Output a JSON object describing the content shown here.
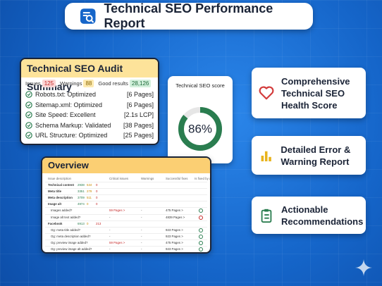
{
  "header": {
    "title": "Technical SEO Performance Report"
  },
  "audit_summary": {
    "title": "Technical SEO Audit Summary",
    "stats": [
      {
        "label": "Issues",
        "value": "125"
      },
      {
        "label": "Warnings",
        "value": "88"
      },
      {
        "label": "Good results",
        "value": "28,126"
      }
    ],
    "checks": [
      {
        "label": "Robots.txt: Optimized",
        "detail": "[6 Pages]"
      },
      {
        "label": "Sitemap.xml: Optimized",
        "detail": "[6 Pages]"
      },
      {
        "label": "Site Speed: Excellent",
        "detail": "[2.1s LCP]"
      },
      {
        "label": "Schema Markup: Validated",
        "detail": "[38 Pages]"
      },
      {
        "label": "URL Structure: Optimized",
        "detail": "[25 Pages]"
      }
    ]
  },
  "score": {
    "title": "Technical SEO score",
    "value": 86,
    "label": "86%"
  },
  "overview": {
    "title": "Overview",
    "columns": [
      "Issue description",
      "Critical issues",
      "Warnings",
      "Successful fixes",
      "Is fixed by audit"
    ],
    "rows": [
      {
        "name": "Technical content",
        "counts": [
          "2938",
          "534",
          "0"
        ]
      },
      {
        "name": "Meta title",
        "counts": [
          "3351",
          "279",
          "0"
        ]
      },
      {
        "name": "Meta description",
        "counts": [
          "3709",
          "511",
          "0"
        ]
      },
      {
        "name": "Image alt",
        "counts": [
          "4974",
          "0",
          "0"
        ]
      },
      {
        "name": "Images added?",
        "critical": "59 Pages >",
        "warnings": "-",
        "successful": "475 Pages >",
        "status": "pass"
      },
      {
        "name": "Image alt text added?",
        "critical": "-",
        "warnings": "-",
        "successful": "4839 Pages >",
        "status": "fail"
      },
      {
        "name": "Facebook",
        "counts": [
          "6913",
          "0",
          "213"
        ]
      },
      {
        "name": "Og: meta title added?",
        "critical": "-",
        "warnings": "-",
        "successful": "923 Pages >",
        "status": "pass"
      },
      {
        "name": "Og: meta description added?",
        "critical": "-",
        "warnings": "-",
        "successful": "923 Pages >",
        "status": "pass"
      },
      {
        "name": "Og: preview image added?",
        "critical": "59 Pages >",
        "warnings": "-",
        "successful": "475 Pages >",
        "status": "pass"
      },
      {
        "name": "Og: preview image alt added?",
        "critical": "-",
        "warnings": "-",
        "successful": "923 Pages >",
        "status": "pass"
      }
    ]
  },
  "features": [
    {
      "label": "Comprehensive Technical SEO Health Score"
    },
    {
      "label": "Detailed Error & Warning Report"
    },
    {
      "label": "Actionable Recommendations"
    }
  ]
}
